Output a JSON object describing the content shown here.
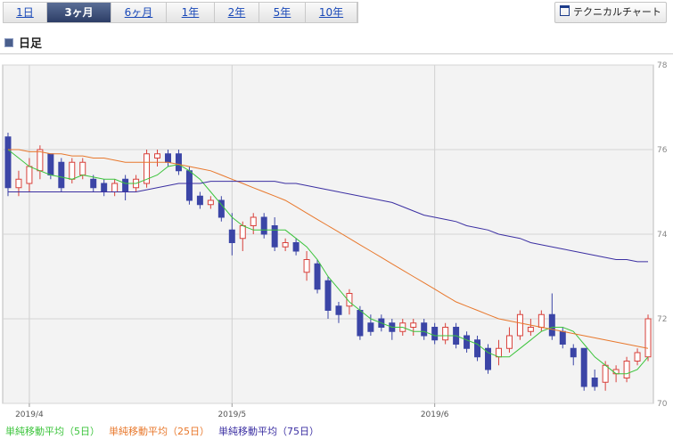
{
  "tabs": [
    "1日",
    "3ヶ月",
    "6ヶ月",
    "1年",
    "2年",
    "5年",
    "10年"
  ],
  "selected_tab": 1,
  "button": "テクニカルチャート",
  "section_title": "日足",
  "chart_data": {
    "type": "candlestick",
    "categories": [
      null,
      null,
      "2019/4",
      null,
      null,
      null,
      null,
      null,
      null,
      null,
      null,
      null,
      null,
      null,
      null,
      null,
      null,
      null,
      null,
      null,
      null,
      "2019/5",
      null,
      null,
      null,
      null,
      null,
      null,
      null,
      null,
      null,
      null,
      null,
      null,
      null,
      null,
      null,
      null,
      null,
      null,
      "2019/6",
      null,
      null,
      null,
      null,
      null,
      null,
      null,
      null,
      null,
      null,
      null,
      null,
      null,
      null,
      null,
      null,
      null,
      null,
      null,
      null
    ],
    "open": [
      76.3,
      75.1,
      75.2,
      75.5,
      75.9,
      75.7,
      75.3,
      75.4,
      75.3,
      75.2,
      75.0,
      75.3,
      75.1,
      75.2,
      75.8,
      75.9,
      75.9,
      75.5,
      74.9,
      74.7,
      74.8,
      74.1,
      73.9,
      74.2,
      74.4,
      74.2,
      73.7,
      73.8,
      73.1,
      73.3,
      72.9,
      72.3,
      72.3,
      72.2,
      71.9,
      72.0,
      71.9,
      71.7,
      71.8,
      71.9,
      71.8,
      71.5,
      71.8,
      71.6,
      71.5,
      71.3,
      71.1,
      71.3,
      71.6,
      71.7,
      71.8,
      72.1,
      71.7,
      71.3,
      71.3,
      70.6,
      70.5,
      70.7,
      70.6,
      71.0,
      71.1
    ],
    "high": [
      76.4,
      75.5,
      75.8,
      76.1,
      75.9,
      75.8,
      75.8,
      75.8,
      75.4,
      75.3,
      75.3,
      75.4,
      75.4,
      76.0,
      76.0,
      76.0,
      76.0,
      75.6,
      75.0,
      74.9,
      74.9,
      74.5,
      74.3,
      74.5,
      74.5,
      74.4,
      73.9,
      73.9,
      73.6,
      73.4,
      73.0,
      72.4,
      72.7,
      72.3,
      72.1,
      72.1,
      72.0,
      72.0,
      72.0,
      72.0,
      71.9,
      71.9,
      71.9,
      71.7,
      71.6,
      71.4,
      71.5,
      71.8,
      72.2,
      72.0,
      72.2,
      72.6,
      71.8,
      71.4,
      71.3,
      70.8,
      71.0,
      70.9,
      71.1,
      71.3,
      72.1
    ],
    "low": [
      74.9,
      74.9,
      75.0,
      75.3,
      75.3,
      75.0,
      75.2,
      75.3,
      75.0,
      74.9,
      74.9,
      74.8,
      75.0,
      75.1,
      75.6,
      75.6,
      75.4,
      74.7,
      74.6,
      74.6,
      74.3,
      73.5,
      73.6,
      74.0,
      73.9,
      73.6,
      73.6,
      73.5,
      72.9,
      72.6,
      72.0,
      71.9,
      72.1,
      71.5,
      71.6,
      71.7,
      71.5,
      71.6,
      71.6,
      71.5,
      71.4,
      71.4,
      71.3,
      71.2,
      71.0,
      70.7,
      70.9,
      71.2,
      71.5,
      71.6,
      71.7,
      71.5,
      71.3,
      70.9,
      70.3,
      70.3,
      70.3,
      70.5,
      70.5,
      70.9,
      71.0
    ],
    "close": [
      75.1,
      75.3,
      75.6,
      76.0,
      75.4,
      75.1,
      75.7,
      75.7,
      75.1,
      75.0,
      75.2,
      75.0,
      75.3,
      75.9,
      75.9,
      75.7,
      75.5,
      74.8,
      74.7,
      74.8,
      74.4,
      73.8,
      74.2,
      74.4,
      74.0,
      73.7,
      73.8,
      73.6,
      73.4,
      72.7,
      72.2,
      72.1,
      72.6,
      71.6,
      71.7,
      71.8,
      71.7,
      71.9,
      71.9,
      71.6,
      71.5,
      71.8,
      71.4,
      71.3,
      71.1,
      70.8,
      71.3,
      71.6,
      72.1,
      71.8,
      72.1,
      71.6,
      71.4,
      71.1,
      70.4,
      70.4,
      70.9,
      70.8,
      71.0,
      71.2,
      72.0
    ],
    "up_color": "#d8403a",
    "down_color": "#3b45a6",
    "series": [
      {
        "name": "単純移動平均（5日）",
        "color": "#3cc43c",
        "values": [
          76.0,
          75.8,
          75.6,
          75.5,
          75.4,
          75.35,
          75.3,
          75.4,
          75.35,
          75.3,
          75.3,
          75.2,
          75.2,
          75.3,
          75.4,
          75.6,
          75.65,
          75.5,
          75.3,
          75.0,
          74.7,
          74.4,
          74.2,
          74.1,
          74.1,
          74.1,
          74.1,
          73.9,
          73.7,
          73.4,
          73.0,
          72.7,
          72.4,
          72.2,
          72.0,
          71.9,
          71.8,
          71.8,
          71.7,
          71.7,
          71.6,
          71.6,
          71.6,
          71.5,
          71.4,
          71.2,
          71.1,
          71.1,
          71.3,
          71.5,
          71.7,
          71.8,
          71.8,
          71.7,
          71.4,
          71.1,
          70.9,
          70.7,
          70.7,
          70.8,
          71.1
        ]
      },
      {
        "name": "単純移動平均（25日）",
        "color": "#e8782c",
        "values": [
          76.0,
          76.0,
          75.95,
          75.95,
          75.9,
          75.9,
          75.85,
          75.85,
          75.8,
          75.8,
          75.75,
          75.7,
          75.7,
          75.7,
          75.7,
          75.7,
          75.65,
          75.6,
          75.55,
          75.5,
          75.4,
          75.3,
          75.2,
          75.1,
          75.0,
          74.9,
          74.8,
          74.65,
          74.5,
          74.35,
          74.2,
          74.05,
          73.9,
          73.75,
          73.6,
          73.45,
          73.3,
          73.15,
          73.0,
          72.85,
          72.7,
          72.55,
          72.4,
          72.3,
          72.2,
          72.1,
          72.0,
          71.95,
          71.9,
          71.85,
          71.8,
          71.75,
          71.7,
          71.65,
          71.6,
          71.55,
          71.5,
          71.45,
          71.4,
          71.35,
          71.3
        ]
      },
      {
        "name": "単純移動平均（75日）",
        "color": "#3b2fa2",
        "values": [
          75.0,
          75.0,
          75.0,
          75.0,
          75.0,
          75.0,
          75.0,
          75.0,
          75.0,
          75.0,
          75.0,
          75.0,
          75.0,
          75.05,
          75.1,
          75.15,
          75.2,
          75.2,
          75.2,
          75.25,
          75.25,
          75.25,
          75.25,
          75.25,
          75.25,
          75.25,
          75.2,
          75.2,
          75.15,
          75.1,
          75.05,
          75.0,
          74.95,
          74.9,
          74.85,
          74.8,
          74.75,
          74.65,
          74.55,
          74.45,
          74.4,
          74.35,
          74.3,
          74.2,
          74.15,
          74.1,
          74.0,
          73.95,
          73.9,
          73.8,
          73.75,
          73.7,
          73.65,
          73.6,
          73.55,
          73.5,
          73.45,
          73.4,
          73.4,
          73.35,
          73.35
        ]
      }
    ],
    "ylim": [
      70,
      78
    ],
    "yticks": [
      70,
      72,
      74,
      76,
      78
    ],
    "grid": true
  }
}
